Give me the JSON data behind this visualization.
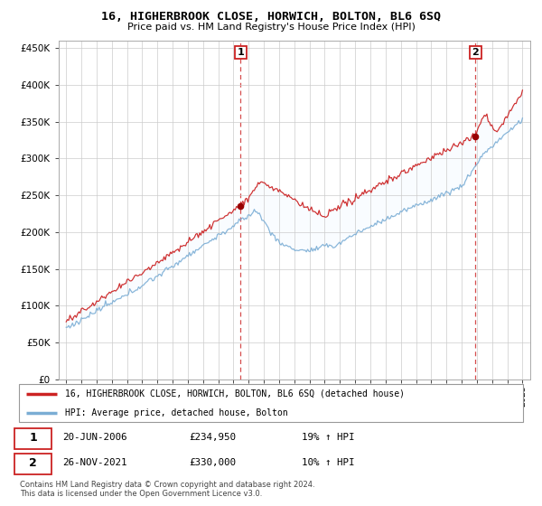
{
  "title": "16, HIGHERBROOK CLOSE, HORWICH, BOLTON, BL6 6SQ",
  "subtitle": "Price paid vs. HM Land Registry's House Price Index (HPI)",
  "ylim": [
    0,
    460000
  ],
  "yticks": [
    0,
    50000,
    100000,
    150000,
    200000,
    250000,
    300000,
    350000,
    400000,
    450000
  ],
  "ytick_labels": [
    "£0",
    "£50K",
    "£100K",
    "£150K",
    "£200K",
    "£250K",
    "£300K",
    "£350K",
    "£400K",
    "£450K"
  ],
  "sale1_date": 2006.47,
  "sale1_price": 234950,
  "sale2_date": 2021.9,
  "sale2_price": 330000,
  "annotation1": [
    "1",
    "20-JUN-2006",
    "£234,950",
    "19% ↑ HPI"
  ],
  "annotation2": [
    "2",
    "26-NOV-2021",
    "£330,000",
    "10% ↑ HPI"
  ],
  "legend_line1": "16, HIGHERBROOK CLOSE, HORWICH, BOLTON, BL6 6SQ (detached house)",
  "legend_line2": "HPI: Average price, detached house, Bolton",
  "footer": "Contains HM Land Registry data © Crown copyright and database right 2024.\nThis data is licensed under the Open Government Licence v3.0.",
  "line_color_red": "#cc2222",
  "line_color_blue": "#7aadd4",
  "fill_color": "#ddeeff",
  "marker_color": "#990000",
  "bg_color": "#ffffff",
  "grid_color": "#cccccc"
}
